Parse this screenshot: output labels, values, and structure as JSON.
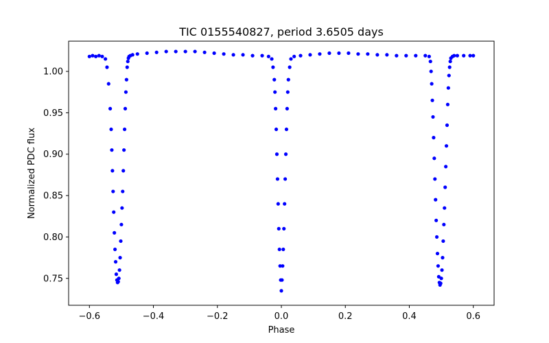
{
  "chart_data": {
    "type": "scatter",
    "title": "TIC 0155540827, period 3.6505 days",
    "xlabel": "Phase",
    "ylabel": "Normalized PDC flux",
    "xlim": [
      -0.665,
      0.665
    ],
    "ylim": [
      0.7175,
      1.0365
    ],
    "xticks": [
      -0.6,
      -0.4,
      -0.2,
      0.0,
      0.2,
      0.4,
      0.6
    ],
    "xtick_labels": [
      "−0.6",
      "−0.4",
      "−0.2",
      "0.0",
      "0.2",
      "0.4",
      "0.6"
    ],
    "yticks": [
      0.75,
      0.8,
      0.85,
      0.9,
      0.95,
      1.0
    ],
    "ytick_labels": [
      "0.75",
      "0.80",
      "0.85",
      "0.90",
      "0.95",
      "1.00"
    ],
    "grid": false,
    "legend": "none",
    "marker_color": "#0000ff",
    "series": [
      {
        "name": "",
        "x": [
          -0.6,
          -0.59,
          -0.58,
          -0.57,
          -0.56,
          -0.55,
          -0.545,
          -0.54,
          -0.535,
          -0.532,
          -0.53,
          -0.528,
          -0.526,
          -0.524,
          -0.522,
          -0.52,
          -0.518,
          -0.516,
          -0.514,
          -0.512,
          -0.51,
          -0.508,
          -0.506,
          -0.504,
          -0.502,
          -0.5,
          -0.498,
          -0.496,
          -0.494,
          -0.492,
          -0.49,
          -0.488,
          -0.486,
          -0.484,
          -0.482,
          -0.48,
          -0.478,
          -0.476,
          -0.472,
          -0.465,
          -0.45,
          -0.42,
          -0.39,
          -0.36,
          -0.33,
          -0.3,
          -0.27,
          -0.24,
          -0.21,
          -0.18,
          -0.15,
          -0.12,
          -0.09,
          -0.06,
          -0.04,
          -0.03,
          -0.026,
          -0.022,
          -0.02,
          -0.018,
          -0.016,
          -0.014,
          -0.012,
          -0.01,
          -0.008,
          -0.006,
          -0.004,
          -0.002,
          0.0,
          0.002,
          0.004,
          0.006,
          0.008,
          0.01,
          0.012,
          0.014,
          0.016,
          0.018,
          0.02,
          0.022,
          0.026,
          0.03,
          0.04,
          0.06,
          0.09,
          0.12,
          0.15,
          0.18,
          0.21,
          0.24,
          0.27,
          0.3,
          0.33,
          0.36,
          0.39,
          0.42,
          0.45,
          0.462,
          0.466,
          0.468,
          0.47,
          0.472,
          0.474,
          0.476,
          0.478,
          0.48,
          0.482,
          0.484,
          0.486,
          0.488,
          0.49,
          0.492,
          0.494,
          0.496,
          0.498,
          0.5,
          0.502,
          0.504,
          0.506,
          0.508,
          0.51,
          0.512,
          0.514,
          0.516,
          0.518,
          0.52,
          0.522,
          0.524,
          0.526,
          0.528,
          0.53,
          0.535,
          0.54,
          0.55,
          0.57,
          0.59,
          0.6
        ],
        "y": [
          1.018,
          1.019,
          1.018,
          1.019,
          1.018,
          1.015,
          1.005,
          0.985,
          0.955,
          0.93,
          0.905,
          0.88,
          0.855,
          0.83,
          0.805,
          0.785,
          0.77,
          0.755,
          0.748,
          0.745,
          0.746,
          0.75,
          0.76,
          0.775,
          0.795,
          0.815,
          0.835,
          0.855,
          0.88,
          0.905,
          0.93,
          0.955,
          0.975,
          0.99,
          1.005,
          1.012,
          1.016,
          1.018,
          1.019,
          1.02,
          1.021,
          1.022,
          1.023,
          1.024,
          1.024,
          1.024,
          1.024,
          1.023,
          1.022,
          1.021,
          1.02,
          1.02,
          1.019,
          1.019,
          1.018,
          1.015,
          1.005,
          0.99,
          0.975,
          0.955,
          0.93,
          0.9,
          0.87,
          0.84,
          0.81,
          0.785,
          0.765,
          0.748,
          0.735,
          0.748,
          0.765,
          0.785,
          0.81,
          0.84,
          0.87,
          0.9,
          0.93,
          0.955,
          0.975,
          0.99,
          1.005,
          1.015,
          1.018,
          1.019,
          1.02,
          1.021,
          1.022,
          1.022,
          1.022,
          1.021,
          1.021,
          1.02,
          1.02,
          1.019,
          1.019,
          1.019,
          1.019,
          1.018,
          1.012,
          1.0,
          0.985,
          0.965,
          0.945,
          0.92,
          0.895,
          0.87,
          0.845,
          0.82,
          0.8,
          0.78,
          0.765,
          0.752,
          0.745,
          0.742,
          0.744,
          0.75,
          0.76,
          0.775,
          0.795,
          0.815,
          0.835,
          0.86,
          0.885,
          0.91,
          0.935,
          0.96,
          0.98,
          0.995,
          1.005,
          1.012,
          1.016,
          1.018,
          1.019,
          1.019,
          1.019,
          1.019,
          1.019
        ]
      }
    ]
  }
}
